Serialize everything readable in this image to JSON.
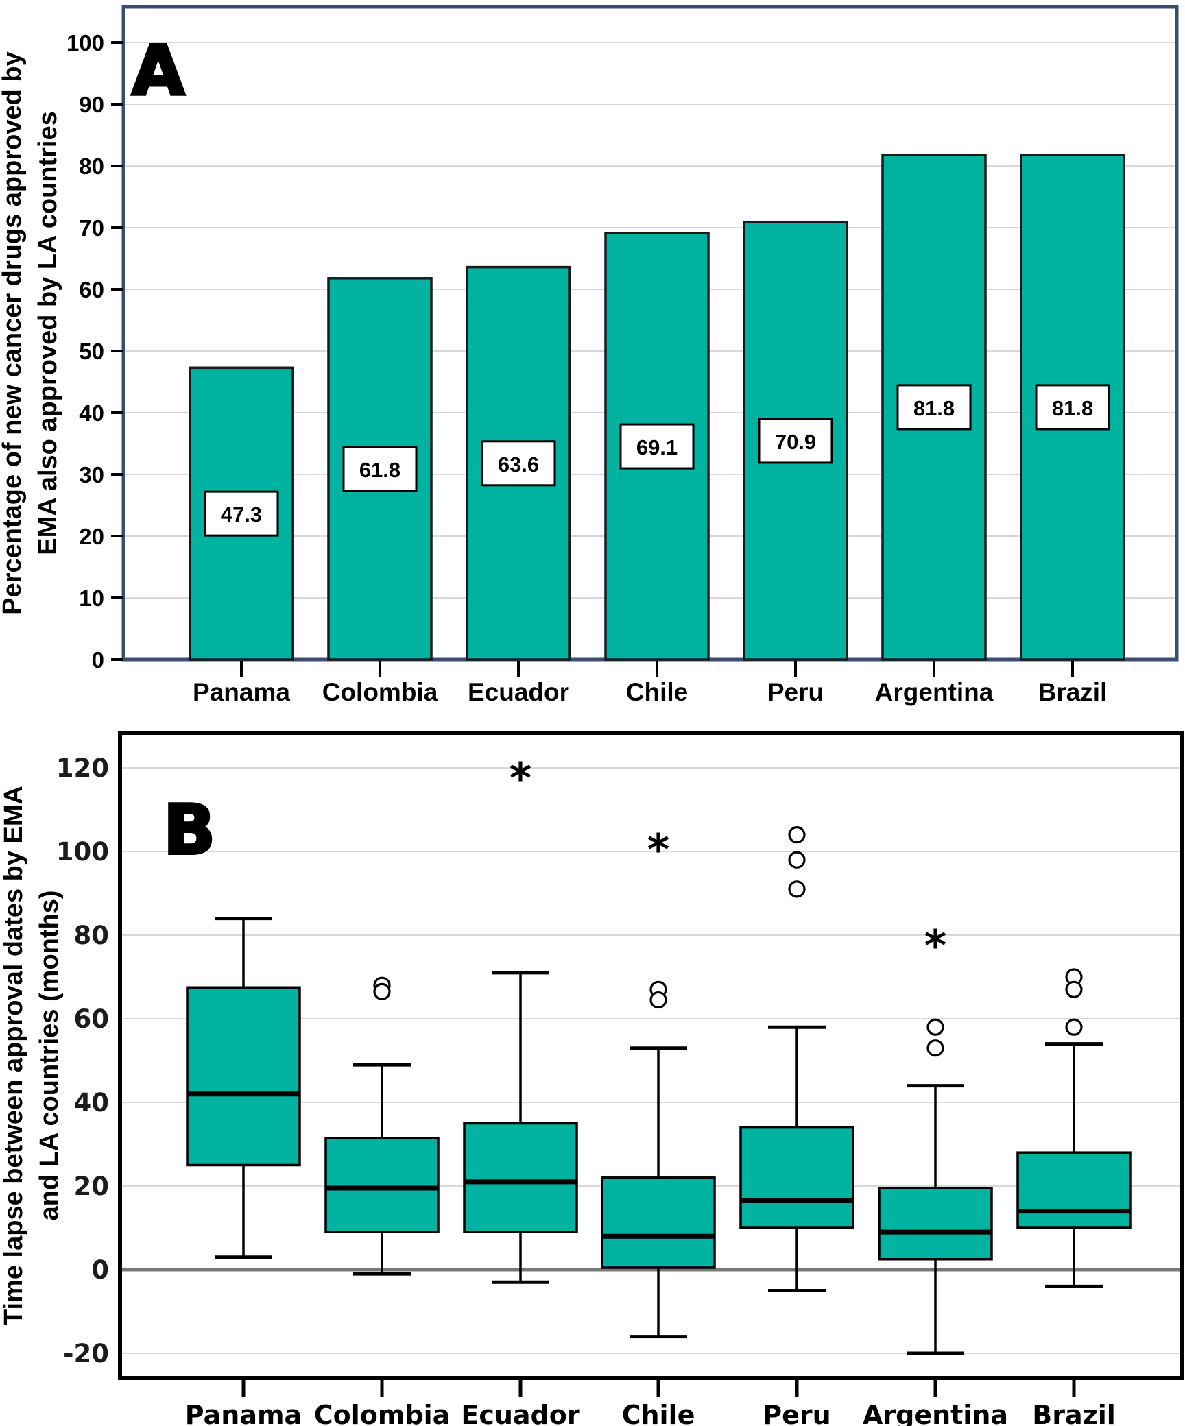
{
  "figure": {
    "background": "#ffffff",
    "description": "Two stacked statistical panels comparing EMA-approved cancer drug availability across Latin American countries"
  },
  "chart_data": [
    {
      "panel_label": "A",
      "type": "bar",
      "title": "",
      "xlabel": "",
      "ylabel_lines": [
        "Percentage of new cancer drugs approved by",
        "EMA also approved by LA countries"
      ],
      "categories": [
        "Panama",
        "Colombia",
        "Ecuador",
        "Chile",
        "Peru",
        "Argentina",
        "Brazil"
      ],
      "values": [
        47.3,
        61.8,
        63.6,
        69.1,
        70.9,
        81.8,
        81.8
      ],
      "value_labels": [
        "47.3",
        "61.8",
        "63.6",
        "69.1",
        "70.9",
        "81.8",
        "81.8"
      ],
      "ylim": [
        0,
        100
      ],
      "ytick_step": 10,
      "grid": true,
      "legend_position": "none",
      "colors": {
        "bar_fill": "#00b2a0",
        "bar_stroke": "#1a1a1a",
        "frame": "#3c4c72",
        "gridline": "#d8d8d8",
        "text": "#000000",
        "label_box_fill": "#ffffff",
        "label_box_stroke": "#000000"
      }
    },
    {
      "panel_label": "B",
      "type": "boxplot",
      "title": "",
      "xlabel": "",
      "ylabel_lines": [
        "Time lapse between approval dates by EMA",
        "and LA countries (months)"
      ],
      "categories": [
        "Panama",
        "Colombia",
        "Ecuador",
        "Chile",
        "Peru",
        "Argentina",
        "Brazil"
      ],
      "yticks": [
        -20,
        0,
        20,
        40,
        60,
        80,
        100,
        120
      ],
      "ylim": [
        -27,
        129
      ],
      "zero_line": true,
      "grid": true,
      "series": [
        {
          "name": "Panama",
          "whisker_low": 3,
          "q1": 25,
          "median": 42,
          "q3": 67.5,
          "whisker_high": 84,
          "outliers": [],
          "extreme_outliers": []
        },
        {
          "name": "Colombia",
          "whisker_low": -1,
          "q1": 9,
          "median": 19.5,
          "q3": 31.5,
          "whisker_high": 49,
          "outliers": [
            68,
            66.5
          ],
          "extreme_outliers": []
        },
        {
          "name": "Ecuador",
          "whisker_low": -3,
          "q1": 9,
          "median": 21,
          "q3": 35,
          "whisker_high": 71,
          "outliers": [],
          "extreme_outliers": [
            119
          ]
        },
        {
          "name": "Chile",
          "whisker_low": -16,
          "q1": 0.5,
          "median": 8,
          "q3": 22,
          "whisker_high": 53,
          "outliers": [
            67,
            64.5
          ],
          "extreme_outliers": [
            102
          ]
        },
        {
          "name": "Peru",
          "whisker_low": -5,
          "q1": 10,
          "median": 16.5,
          "q3": 34,
          "whisker_high": 58,
          "outliers": [
            104,
            98,
            91
          ],
          "extreme_outliers": []
        },
        {
          "name": "Argentina",
          "whisker_low": -20,
          "q1": 2.5,
          "median": 9,
          "q3": 19.5,
          "whisker_high": 44,
          "outliers": [
            58,
            53
          ],
          "extreme_outliers": [
            79
          ]
        },
        {
          "name": "Brazil",
          "whisker_low": -4,
          "q1": 10,
          "median": 14,
          "q3": 28,
          "whisker_high": 54,
          "outliers": [
            70,
            67,
            58
          ],
          "extreme_outliers": []
        }
      ],
      "colors": {
        "box_fill": "#00b2a0",
        "box_stroke": "#000000",
        "frame": "#000000",
        "gridline": "#d8d8d8",
        "zero_line": "#787878",
        "text": "#000000"
      }
    }
  ]
}
